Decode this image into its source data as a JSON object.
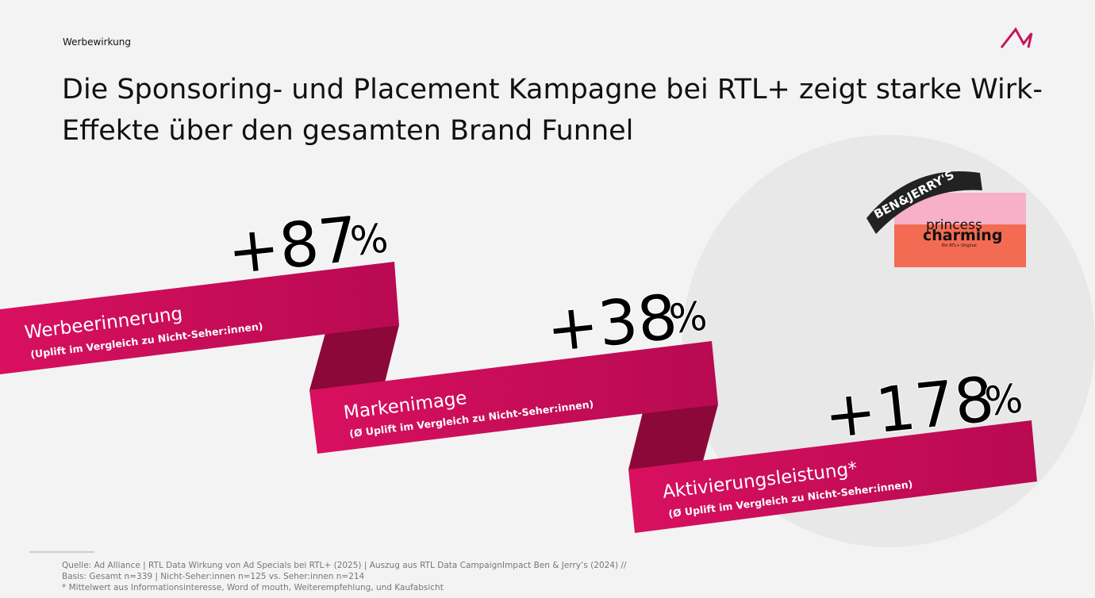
{
  "header": {
    "section": "Werbewirkung",
    "title_lines": [
      "Die Sponsoring- und Placement Kampagne bei RTL+ zeigt starke Wirk-",
      "Effekte über den gesamten Brand Funnel"
    ]
  },
  "logo": {
    "brand": "BEN&JERRY'S",
    "show_line1": "princess",
    "show_line2": "charming",
    "show_tagline": "Ein RTL+ Original"
  },
  "metrics": [
    {
      "label": "Werbeerinnerung",
      "note": "(Uplift im Vergleich zu Nicht-Seher:innen)",
      "number": "+87",
      "unit": "%"
    },
    {
      "label": "Markenimage",
      "note": "(Ø Uplift im Vergleich zu Nicht-Seher:innen)",
      "number": "+38",
      "unit": "%"
    },
    {
      "label": "Aktivierungsleistung*",
      "note": "(Ø Uplift im Vergleich zu Nicht-Seher:innen)",
      "number": "+178",
      "unit": "%"
    }
  ],
  "footer": [
    "Quelle: Ad Alliance | RTL Data Wirkung von Ad Specials bei RTL+ (2025) | Auszug aus RTL Data CampaignImpact Ben & Jerry’s (2024) //",
    "Basis: Gesamt n=339 | Nicht-Seher:innen n=125 vs. Seher:innen n=214",
    "* Mittelwert aus Informationsinteresse, Word of mouth, Weiterempfehlung, und Kaufabsicht"
  ]
}
